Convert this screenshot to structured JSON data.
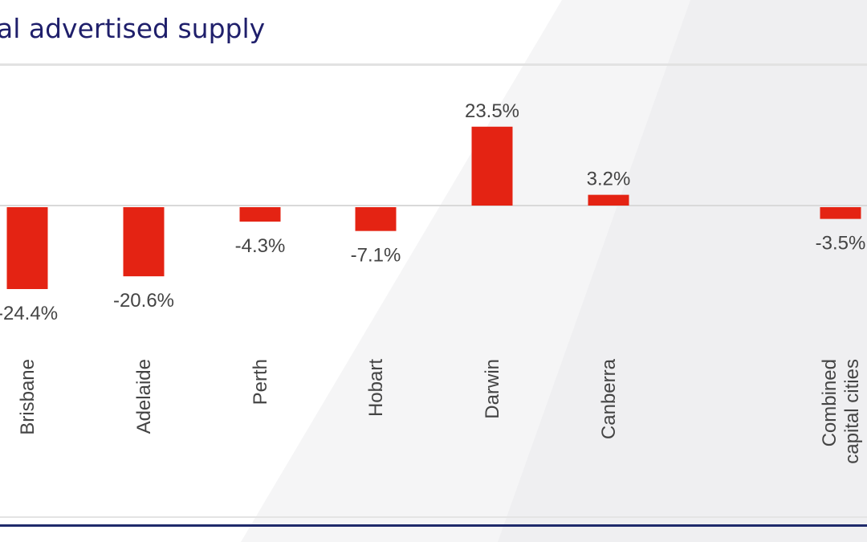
{
  "header": {
    "title": "al advertised supply"
  },
  "chart_data": {
    "type": "bar",
    "title": "al advertised supply",
    "categories": [
      "Brisbane",
      "Adelaide",
      "Perth",
      "Hobart",
      "Darwin",
      "Canberra",
      "Combined capital cities"
    ],
    "category_lines": [
      [
        "Brisbane"
      ],
      [
        "Adelaide"
      ],
      [
        "Perth"
      ],
      [
        "Hobart"
      ],
      [
        "Darwin"
      ],
      [
        "Canberra"
      ],
      [
        "Combined",
        "capital cities"
      ]
    ],
    "values": [
      -24.4,
      -20.6,
      -4.3,
      -7.1,
      23.5,
      3.2,
      -3.5
    ],
    "value_labels": [
      "-24.4%",
      "-20.6%",
      "-4.3%",
      "-7.1%",
      "23.5%",
      "3.2%",
      "-3.5%"
    ],
    "unit": "%",
    "xlabel": "",
    "ylabel": "",
    "grid": false,
    "colors": {
      "bar": "#e42313",
      "axis": "#d9d9d9",
      "label": "#444444",
      "title": "#1f1f6b",
      "brand_line": "#1f2a6b"
    }
  }
}
